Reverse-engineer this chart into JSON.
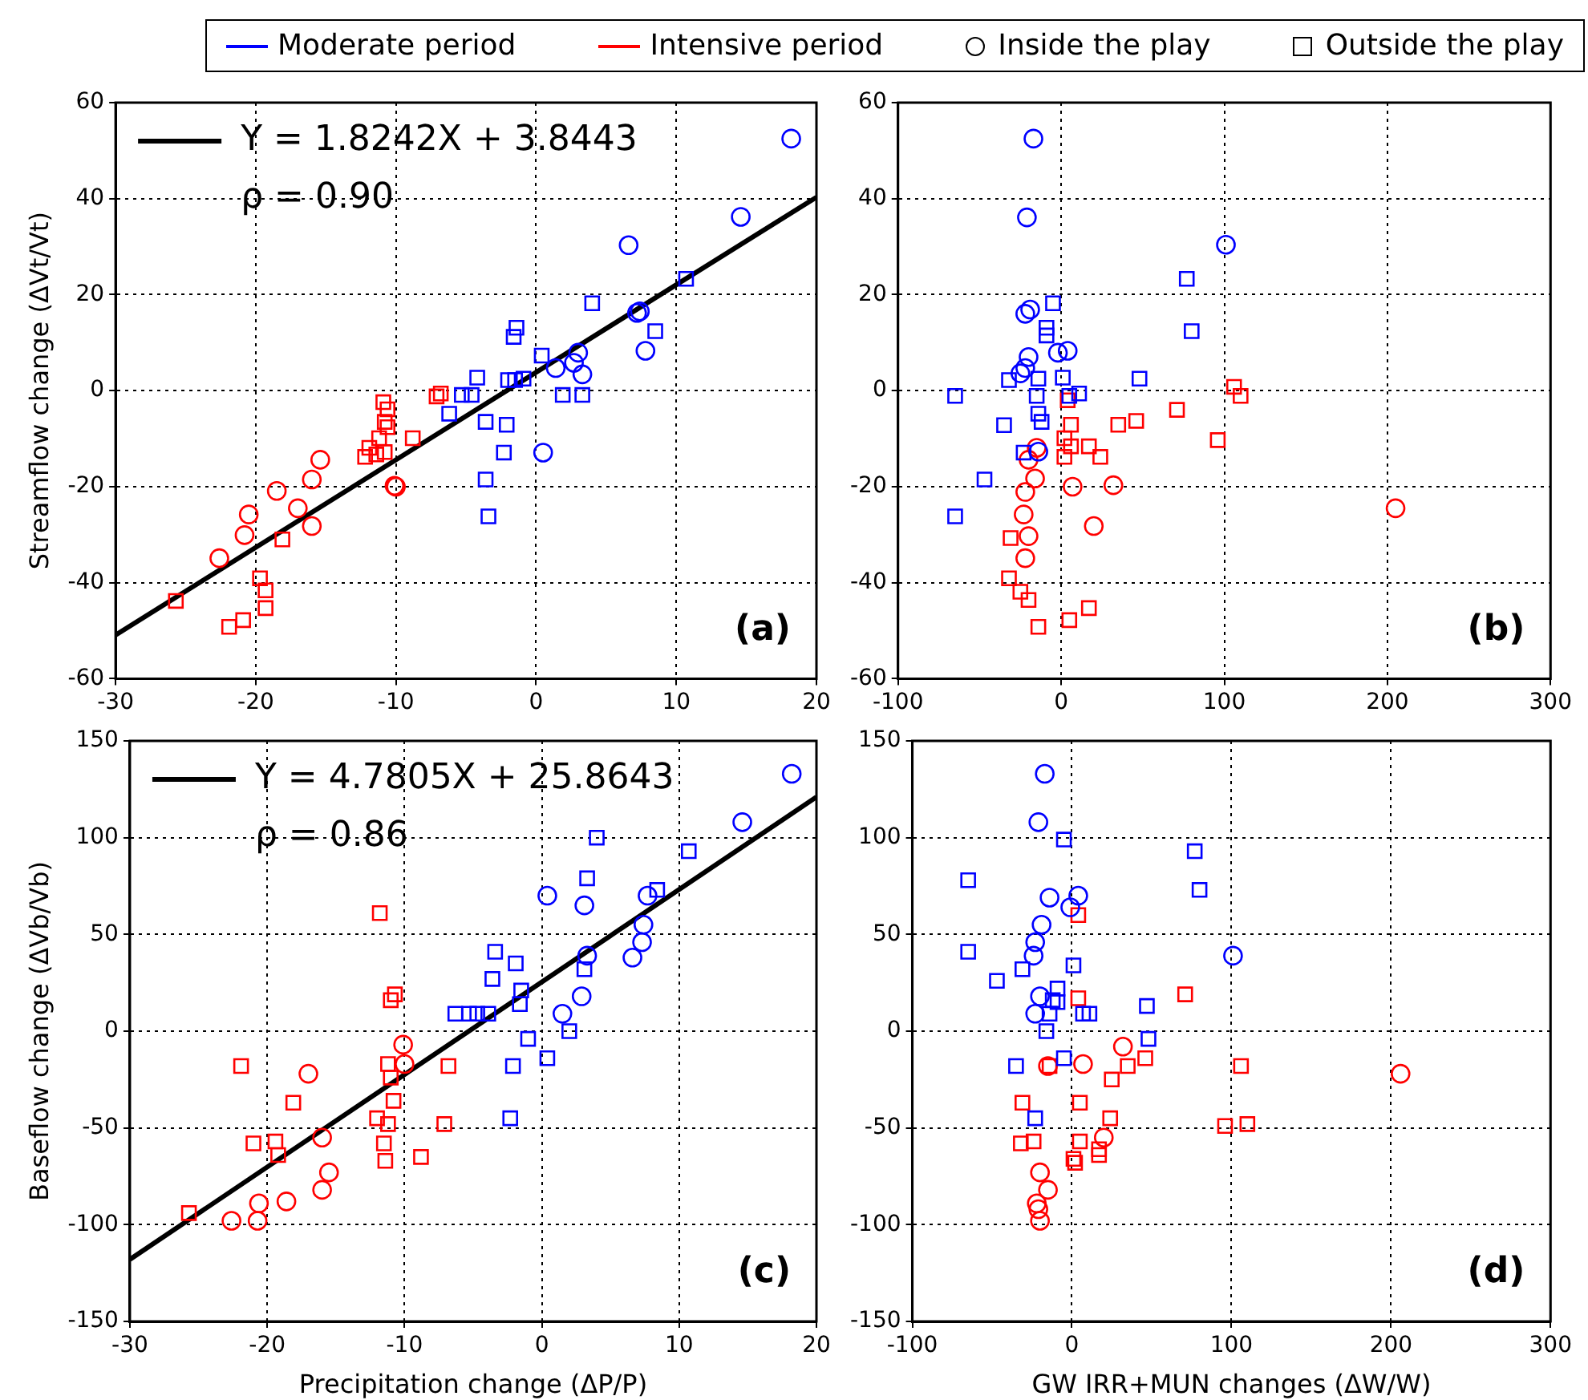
{
  "chart_data": [
    {
      "type": "other",
      "series": [
        {
          "name": "Moderate period",
          "color": "#0000ff"
        },
        {
          "name": "Intensive period",
          "color": "#ff0000"
        },
        {
          "name": "Inside the play",
          "marker": "circle"
        },
        {
          "name": "Outside the play",
          "marker": "square"
        }
      ]
    },
    {
      "type": "scatter",
      "ylabel": "Streamflow change (ΔVt/Vt)",
      "xlim": [
        -30,
        20
      ],
      "xticks": [
        -30,
        -20,
        -10,
        0,
        10,
        20
      ],
      "ylim": [
        -60,
        60
      ],
      "yticks": [
        -60,
        -40,
        -20,
        0,
        20,
        40,
        60
      ],
      "grid": true,
      "legend": "top left",
      "annotations": [
        "ρ = 0.90",
        "(a)"
      ],
      "series": [
        {
          "type": "line",
          "name": "Y = 1.8242X + 3.8443",
          "color": "#000000",
          "marker": "none",
          "x": [
            -30,
            20
          ],
          "values": [
            -50.9,
            40.3
          ]
        },
        {
          "color": "#0000ff",
          "marker": "circle",
          "x": [
            18.2,
            14.6,
            6.6,
            7.2,
            7.4,
            7.8,
            3.0,
            2.7,
            3.3,
            1.4,
            0.5
          ],
          "values": [
            52.5,
            36.2,
            30.3,
            16.2,
            16.5,
            8.3,
            7.9,
            5.8,
            3.4,
            4.7,
            -12.9
          ]
        },
        {
          "color": "#0000ff",
          "marker": "square",
          "x": [
            10.7,
            4.0,
            8.5,
            -1.4,
            -1.6,
            0.4,
            -4.2,
            -2.0,
            -1.5,
            -0.9,
            -5.3,
            -4.6,
            1.9,
            3.3,
            -6.2,
            -3.6,
            -2.1,
            -2.3,
            -3.6,
            -3.4
          ],
          "values": [
            23.3,
            18.2,
            12.4,
            13.1,
            11.2,
            7.3,
            2.7,
            2.2,
            2.2,
            2.5,
            -0.9,
            -0.9,
            -0.9,
            -0.9,
            -4.8,
            -6.5,
            -7.1,
            -12.9,
            -18.5,
            -26.2
          ]
        },
        {
          "color": "#ff0000",
          "marker": "circle",
          "x": [
            -15.4,
            -16,
            -18.5,
            -17,
            -16,
            -20.5,
            -20.8,
            -22.6,
            -10,
            -10.1
          ],
          "values": [
            -14.4,
            -18.5,
            -20.9,
            -24.5,
            -28.2,
            -25.8,
            -30.1,
            -34.9,
            -20,
            -19.8
          ]
        },
        {
          "color": "#ff0000",
          "marker": "square",
          "x": [
            -6.8,
            -7.1,
            -10.9,
            -10.6,
            -10.8,
            -10.6,
            -11.2,
            -8.8,
            -11.9,
            -11.4,
            -12.2,
            -10.8,
            -18.1,
            -19.7,
            -19.3,
            -19.3,
            -20.9,
            -21.9,
            -25.7
          ],
          "values": [
            -0.6,
            -1.2,
            -2.4,
            -3.9,
            -6.5,
            -7.6,
            -9.9,
            -9.9,
            -11.9,
            -13.3,
            -13.8,
            -12.8,
            -31,
            -39.1,
            -41.6,
            -45.3,
            -47.8,
            -49.2,
            -43.8
          ]
        }
      ]
    },
    {
      "type": "scatter",
      "xlim": [
        -100,
        300
      ],
      "xticks": [
        -100,
        0,
        100,
        200,
        300
      ],
      "ylim": [
        -60,
        60
      ],
      "yticks": [
        -60,
        -40,
        -20,
        0,
        20,
        40,
        60
      ],
      "grid": true,
      "annotations": [
        "(b)"
      ],
      "series": [
        {
          "color": "#0000ff",
          "marker": "circle",
          "x": [
            -17,
            -21,
            -22,
            -19,
            -20,
            -22,
            -25,
            -2,
            4,
            101,
            -14
          ],
          "values": [
            52.5,
            36.1,
            16,
            16.9,
            7,
            4.7,
            3.6,
            7.9,
            8.3,
            30.4,
            -12.7
          ]
        },
        {
          "color": "#0000ff",
          "marker": "square",
          "x": [
            -5,
            -9,
            -9,
            -32,
            -14,
            1,
            48,
            5,
            11,
            -65,
            -15,
            -14,
            -12,
            -35,
            -23,
            -47,
            -65,
            77,
            80
          ],
          "values": [
            18.2,
            13.1,
            11.5,
            2.2,
            2.5,
            2.7,
            2.5,
            -1.1,
            -0.6,
            -1.1,
            -1.1,
            -4.8,
            -6.5,
            -7.2,
            -12.9,
            -18.5,
            -26.2,
            23.3,
            12.4
          ]
        },
        {
          "color": "#ff0000",
          "marker": "circle",
          "x": [
            -15,
            -20,
            -16,
            -22,
            -23,
            -20,
            -22,
            7,
            32,
            20,
            205
          ],
          "values": [
            -11.9,
            -14.4,
            -18.3,
            -21.1,
            -25.8,
            -30.3,
            -34.9,
            -20,
            -19.7,
            -28.2,
            -24.5
          ]
        },
        {
          "color": "#ff0000",
          "marker": "square",
          "x": [
            4,
            6,
            2,
            2,
            6,
            17,
            24,
            35,
            46,
            71,
            96,
            106,
            110,
            -31,
            -32,
            -25,
            -20,
            -14,
            5,
            17
          ],
          "values": [
            -2,
            -7.1,
            -9.9,
            -13.8,
            -11.6,
            -11.6,
            -13.8,
            -7.1,
            -6.3,
            -4,
            -10.3,
            0.8,
            -1.1,
            -30.7,
            -39.1,
            -41.9,
            -43.6,
            -49.2,
            -47.8,
            -45.3
          ]
        }
      ]
    },
    {
      "type": "scatter",
      "xlabel": "Precipitation change (ΔP/P)",
      "ylabel": "Baseflow change (ΔVb/Vb)",
      "xlim": [
        -30,
        20
      ],
      "xticks": [
        -30,
        -20,
        -10,
        0,
        10,
        20
      ],
      "ylim": [
        -150,
        150
      ],
      "yticks": [
        -150,
        -100,
        -50,
        0,
        50,
        100,
        150
      ],
      "grid": true,
      "legend": "top left",
      "annotations": [
        "ρ = 0.86",
        "(c)"
      ],
      "series": [
        {
          "type": "line",
          "name": "Y = 4.7805X + 25.8643",
          "color": "#000000",
          "marker": "none",
          "x": [
            -30,
            20
          ],
          "values": [
            -118,
            121
          ]
        },
        {
          "color": "#0000ff",
          "marker": "circle",
          "x": [
            18.2,
            14.6,
            0.4,
            3.1,
            7.7,
            7.4,
            7.3,
            6.6,
            3.3,
            2.9,
            1.5
          ],
          "values": [
            133,
            108,
            70,
            65,
            70,
            55,
            46,
            38,
            39,
            18,
            9
          ]
        },
        {
          "color": "#0000ff",
          "marker": "square",
          "x": [
            4.0,
            3.3,
            10.7,
            8.4,
            -3.4,
            -1.9,
            -3.6,
            -1.5,
            -1.6,
            -6.3,
            -5.3,
            -4.7,
            -3.9,
            3.1,
            -1,
            2,
            0.4,
            -2.1,
            -2.3
          ],
          "values": [
            100,
            79,
            93,
            73,
            41,
            35,
            27,
            21,
            14,
            9,
            9,
            9,
            9,
            32,
            -4,
            0,
            -14,
            -18,
            -45
          ]
        },
        {
          "color": "#ff0000",
          "marker": "circle",
          "x": [
            -17,
            -16,
            -15.5,
            -16,
            -18.6,
            -20.6,
            -20.7,
            -22.6,
            -10.1,
            -10
          ],
          "values": [
            -22,
            -55,
            -73,
            -82,
            -88,
            -89,
            -98,
            -98,
            -7,
            -17
          ]
        },
        {
          "color": "#ff0000",
          "marker": "square",
          "x": [
            -11.8,
            -10.7,
            -11,
            -6.8,
            -21.9,
            -18.1,
            -21,
            -19.4,
            -19.2,
            -11.2,
            -11,
            -10.8,
            -12,
            -11.2,
            -11.5,
            -11.4,
            -8.8,
            -7.1,
            -25.7
          ],
          "values": [
            61,
            19,
            16,
            -18,
            -18,
            -37,
            -58,
            -57,
            -64,
            -17,
            -24,
            -36,
            -45,
            -48,
            -58,
            -67,
            -65,
            -48,
            -94
          ]
        }
      ]
    },
    {
      "type": "scatter",
      "xlabel": "GW IRR+MUN changes (ΔW/W)",
      "xlim": [
        -100,
        300
      ],
      "xticks": [
        -100,
        0,
        100,
        200,
        300
      ],
      "ylim": [
        -150,
        150
      ],
      "yticks": [
        -150,
        -100,
        -50,
        0,
        50,
        100,
        150
      ],
      "grid": true,
      "annotations": [
        "(d)"
      ],
      "series": [
        {
          "color": "#0000ff",
          "marker": "circle",
          "x": [
            -17,
            -21,
            -14,
            4,
            -1,
            -19,
            -23,
            -24,
            101,
            -20,
            -23
          ],
          "values": [
            133,
            108,
            69,
            70,
            64,
            55,
            46,
            39,
            39,
            18,
            9
          ]
        },
        {
          "color": "#0000ff",
          "marker": "square",
          "x": [
            -5,
            -65,
            77,
            80,
            -65,
            -31,
            -47,
            1,
            -9,
            -12,
            -9,
            -14,
            7,
            11,
            47,
            48,
            -16,
            -5,
            -35,
            -23
          ],
          "values": [
            99,
            78,
            93,
            73,
            41,
            32,
            26,
            34,
            22,
            16,
            15,
            9,
            9,
            9,
            13,
            -4,
            0,
            -14,
            -18,
            -45
          ]
        },
        {
          "color": "#ff0000",
          "marker": "circle",
          "x": [
            32,
            7,
            -15,
            20,
            -20,
            -15,
            -22,
            -21,
            -20,
            206
          ],
          "values": [
            -8,
            -17,
            -18,
            -55,
            -73,
            -82,
            -89,
            -92,
            -98,
            -22
          ]
        },
        {
          "color": "#ff0000",
          "marker": "square",
          "x": [
            4,
            4,
            71,
            106,
            -14,
            35,
            25,
            46,
            -31,
            5,
            24,
            -32,
            -24,
            5,
            17,
            17,
            1,
            2,
            96,
            110
          ],
          "values": [
            60,
            17,
            19,
            -18,
            -18,
            -18,
            -25,
            -14,
            -37,
            -37,
            -45,
            -58,
            -57,
            -57,
            -61,
            -64,
            -66,
            -68,
            -49,
            -48
          ]
        }
      ]
    }
  ]
}
